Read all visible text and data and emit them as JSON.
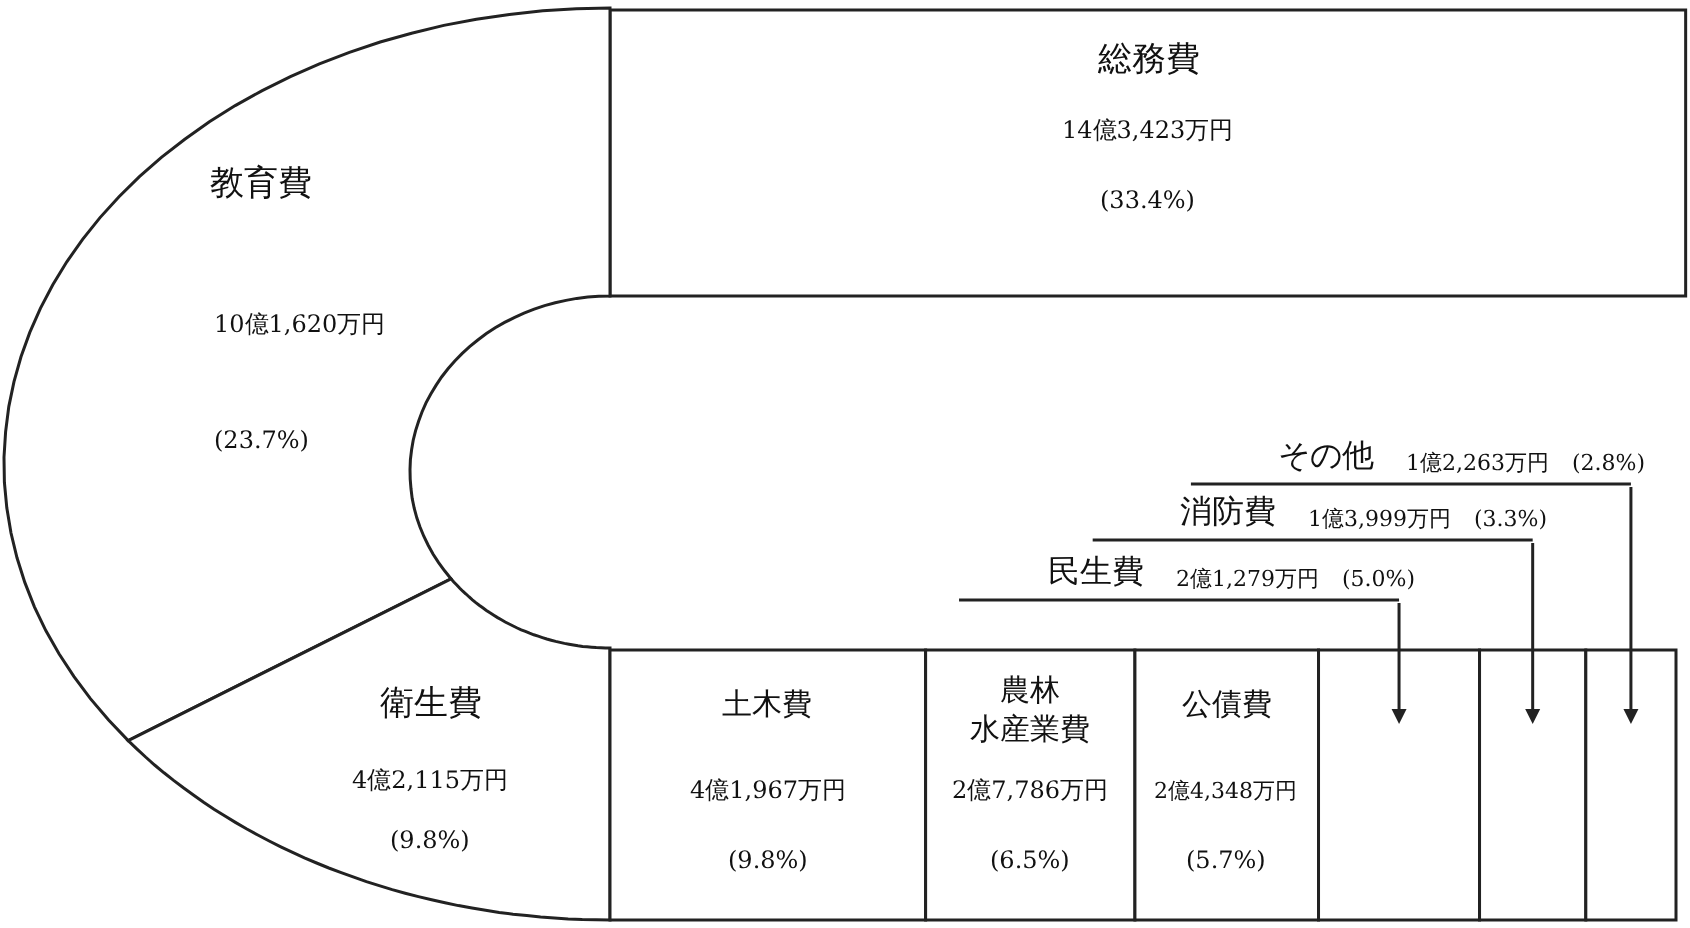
{
  "chart_data": {
    "type": "other",
    "categories": [
      "総務費",
      "教育費",
      "衛生費",
      "土木費",
      "農林水産業費",
      "公債費",
      "民生費",
      "消防費",
      "その他"
    ],
    "values": [
      33.4,
      23.7,
      9.8,
      9.8,
      6.5,
      5.7,
      5.0,
      3.3,
      2.8
    ],
    "value_labels": [
      "(33.4%)",
      "(23.7%)",
      "(9.8%)",
      "(9.8%)",
      "(6.5%)",
      "(5.7%)",
      "(5.0%)",
      "(3.3%)",
      "(2.8%)"
    ],
    "annotations": [
      "14億3,423万円",
      "10億1,620万円",
      "4億2,115万円",
      "4億1,967万円",
      "2億7,786万円",
      "2億4,348万円",
      "2億1,279万円",
      "1億3,999万円",
      "1億2,263万円"
    ]
  }
}
